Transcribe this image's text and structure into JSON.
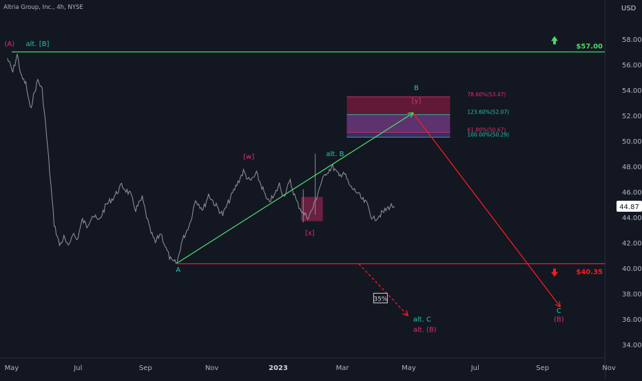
{
  "header": {
    "symbol_title": "Altria Group, Inc., 4h, NYSE",
    "currency": "USD"
  },
  "colors": {
    "background": "#131722",
    "price": "#8a8e99",
    "green": "#4cd964",
    "red": "#ff1a1a",
    "teal": "#26c6b0",
    "magenta": "#e0306f",
    "text": "#b2b5be"
  },
  "chart_data": {
    "type": "line",
    "title": "Altria Group, Inc., 4h, NYSE",
    "ylabel": "USD",
    "ylim": [
      33,
      59.5
    ],
    "y_ticks": [
      "34.00",
      "36.00",
      "38.00",
      "40.00",
      "42.00",
      "44.00",
      "46.00",
      "48.00",
      "50.00",
      "52.00",
      "54.00",
      "56.00",
      "58.00"
    ],
    "x_ticks": [
      "May",
      "Jul",
      "Sep",
      "Nov",
      "2023",
      "Mar",
      "May",
      "Jul",
      "Sep",
      "Nov"
    ],
    "x_tick_dates": [
      "2022-05-01",
      "2022-07-01",
      "2022-09-01",
      "2022-11-01",
      "2023-01-01",
      "2023-03-01",
      "2023-05-01",
      "2023-07-01",
      "2023-09-01",
      "2023-11-01"
    ],
    "last_price": "44.87",
    "series": [
      {
        "x": [
          "2022-04-27",
          "2022-05-02",
          "2022-05-06",
          "2022-05-10",
          "2022-05-14",
          "2022-05-18",
          "2022-05-21",
          "2022-05-25",
          "2022-05-29",
          "2022-06-02",
          "2022-06-05",
          "2022-06-09",
          "2022-06-14",
          "2022-06-18",
          "2022-06-22",
          "2022-06-26",
          "2022-06-30",
          "2022-07-05",
          "2022-07-09",
          "2022-07-14",
          "2022-07-20",
          "2022-07-27",
          "2022-08-03",
          "2022-08-10",
          "2022-08-18",
          "2022-08-23",
          "2022-08-29",
          "2022-09-05",
          "2022-09-10",
          "2022-09-15",
          "2022-09-20",
          "2022-09-25",
          "2022-09-30",
          "2022-10-04",
          "2022-10-12",
          "2022-10-17",
          "2022-10-24",
          "2022-10-29",
          "2022-11-04",
          "2022-11-11",
          "2022-11-18",
          "2022-11-24",
          "2022-11-30",
          "2022-12-06",
          "2022-12-12",
          "2022-12-18",
          "2022-12-22",
          "2022-12-28",
          "2023-01-02",
          "2023-01-06",
          "2023-01-12",
          "2023-01-18",
          "2023-01-24",
          "2023-01-29",
          "2023-02-03",
          "2023-02-09",
          "2023-02-14",
          "2023-02-20",
          "2023-02-26",
          "2023-03-02",
          "2023-03-08",
          "2023-03-14",
          "2023-03-19",
          "2023-03-24",
          "2023-03-29",
          "2023-04-03",
          "2023-04-09",
          "2023-04-14",
          "2023-04-18"
        ],
        "y": [
          56.5,
          55.4,
          56.8,
          55.0,
          54.5,
          52.5,
          53.5,
          54.8,
          54.0,
          50.5,
          47.5,
          43.5,
          41.8,
          42.4,
          41.6,
          42.8,
          42.2,
          43.8,
          43.3,
          44.2,
          43.7,
          45.0,
          45.6,
          46.5,
          45.8,
          44.6,
          45.5,
          43.0,
          42.0,
          42.8,
          41.5,
          40.5,
          40.4,
          42.0,
          43.6,
          45.4,
          44.6,
          45.8,
          45.0,
          44.2,
          45.5,
          46.6,
          47.6,
          46.8,
          47.4,
          46.2,
          45.2,
          45.6,
          46.6,
          45.7,
          46.8,
          45.2,
          44.3,
          44.0,
          45.0,
          46.6,
          47.5,
          48.0,
          47.2,
          47.6,
          46.4,
          46.0,
          45.4,
          45.0,
          43.8,
          44.1,
          44.5,
          44.9,
          44.87
        ]
      }
    ],
    "levels": [
      {
        "label": "$57.00",
        "value": 57.0,
        "color": "green",
        "from": "2022-05-01",
        "arrow": "up"
      },
      {
        "label": "$40.35",
        "value": 40.35,
        "color": "red",
        "from": "2022-09-30",
        "arrow": "down"
      }
    ],
    "paths": [
      {
        "color": "green",
        "dashed": false,
        "points": [
          {
            "x": "2022-09-30",
            "y": 40.4
          },
          {
            "x": "2023-05-05",
            "y": 52.2
          }
        ]
      },
      {
        "color": "red",
        "dashed": false,
        "points": [
          {
            "x": "2023-05-05",
            "y": 52.2
          },
          {
            "x": "2023-09-17",
            "y": 37.0
          }
        ]
      },
      {
        "color": "red",
        "dashed": true,
        "points": [
          {
            "x": "2023-03-16",
            "y": 40.35
          },
          {
            "x": "2023-04-30",
            "y": 36.3
          }
        ]
      }
    ],
    "fib_zone": {
      "x_from": "2023-03-05",
      "x_to": "2023-06-08",
      "outer": [
        50.67,
        53.47
      ],
      "inner": [
        50.29,
        52.07
      ],
      "labels": [
        {
          "text": "78.60%(53.47)",
          "value": 53.47,
          "color": "magenta"
        },
        {
          "text": "123.60%(52.07)",
          "value": 52.07,
          "color": "teal"
        },
        {
          "text": "61.80%(50.67)",
          "value": 50.67,
          "color": "magenta"
        },
        {
          "text": "100.00%(50.29)",
          "value": 50.29,
          "color": "teal"
        }
      ]
    },
    "consolidation_box": {
      "x_from": "2023-01-22",
      "x_to": "2023-02-11",
      "y_range": [
        43.7,
        45.6
      ]
    },
    "annotations": [
      {
        "text": "(A)",
        "x": "2022-04-29",
        "y": 57.45,
        "color": "magenta"
      },
      {
        "text": "alt. [B]",
        "x": "2022-05-14",
        "y": 57.45,
        "color": "teal"
      },
      {
        "text": "A",
        "x": "2022-10-01",
        "y": 39.7,
        "color": "teal"
      },
      {
        "text": "[w]",
        "x": "2022-12-05",
        "y": 48.6,
        "color": "magenta"
      },
      {
        "text": "alt. B",
        "x": "2023-02-14",
        "y": 48.8,
        "color": "teal"
      },
      {
        "text": "[x]",
        "x": "2023-01-30",
        "y": 42.6,
        "color": "magenta"
      },
      {
        "text": "B",
        "x": "2023-05-08",
        "y": 54.0,
        "color": "teal"
      },
      {
        "text": "[y]",
        "x": "2023-05-08",
        "y": 53.0,
        "color": "magenta"
      },
      {
        "text": "C",
        "x": "2023-09-16",
        "y": 36.5,
        "color": "teal"
      },
      {
        "text": "(B)",
        "x": "2023-09-16",
        "y": 35.8,
        "color": "magenta"
      },
      {
        "text": "alt. C",
        "x": "2023-05-05",
        "y": 35.8,
        "color": "teal"
      },
      {
        "text": "alt. (B)",
        "x": "2023-05-05",
        "y": 35.0,
        "color": "magenta"
      }
    ],
    "probability_label": {
      "text": "35%",
      "x": "2023-04-05",
      "y": 37.6
    }
  }
}
